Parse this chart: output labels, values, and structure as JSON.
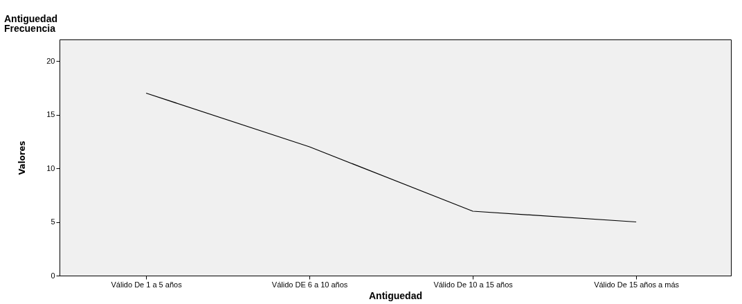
{
  "chart_data": {
    "type": "line",
    "title": "Antiguedad",
    "subtitle": "Frecuencia",
    "xlabel": "Antiguedad",
    "ylabel": "Valores",
    "categories": [
      "Válido De 1 a 5 años",
      "Válido DE 6 a 10 años",
      "Válido De 10 a 15 años",
      "Válido De 15 años a más"
    ],
    "series": [
      {
        "color": "#000000",
        "values": [
          17,
          12,
          6,
          5
        ]
      }
    ],
    "ylim": [
      0,
      22
    ],
    "yticks": [
      0,
      5,
      10,
      15,
      20
    ],
    "grid": false,
    "legend": false,
    "marker": "none",
    "line_style": "solid"
  }
}
